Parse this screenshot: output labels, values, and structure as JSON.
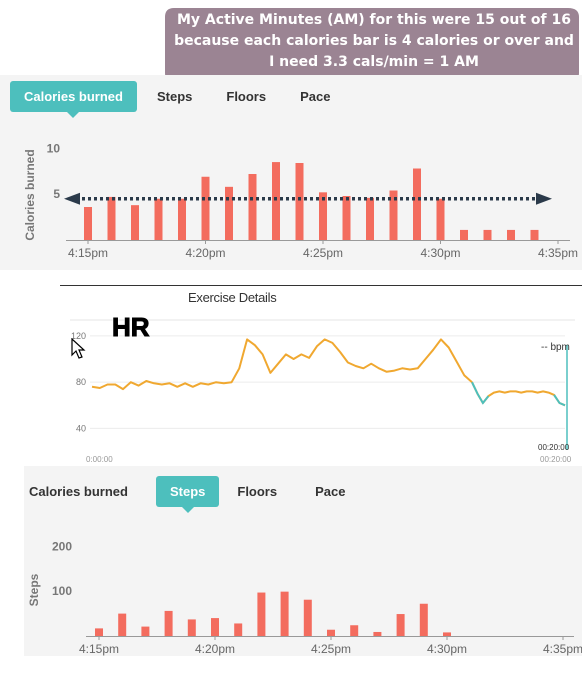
{
  "callout": {
    "lines": [
      "My Active Minutes (AM) for this were 15 out of 16",
      "because each calories bar is 4 calories or over and",
      "I need 3.3 cals/min = 1 AM"
    ],
    "color": "#9b8493"
  },
  "tabs_top": [
    {
      "label": "Calories burned",
      "active": true
    },
    {
      "label": "Steps",
      "active": false
    },
    {
      "label": "Floors",
      "active": false
    },
    {
      "label": "Pace",
      "active": false
    }
  ],
  "tabs_bottom": [
    {
      "label": "Calories burned",
      "active": false
    },
    {
      "label": "Steps",
      "active": true
    },
    {
      "label": "Floors",
      "active": false
    },
    {
      "label": "Pace",
      "active": false
    }
  ],
  "hr_panel": {
    "title": "Exercise Details",
    "label": "HR",
    "bpm_label": "-- bpm",
    "start_time": "0:00:00",
    "end_time_top": "00:20:00",
    "end_time_bottom": "00:20:00"
  },
  "colors": {
    "accent": "#4dbfbd",
    "bar": "#f36c5e",
    "hr_line": "#f0a830",
    "hr_cool": "#4dbfbd"
  },
  "chart_data": [
    {
      "type": "bar",
      "ylabel": "Calories burned",
      "yticks": [
        5,
        10
      ],
      "ylim": [
        0,
        12
      ],
      "xticks": [
        "4:15pm",
        "4:20pm",
        "4:25pm",
        "4:30pm",
        "4:35pm"
      ],
      "values": [
        3.6,
        4.7,
        3.8,
        4.5,
        4.5,
        6.9,
        5.8,
        7.2,
        8.5,
        8.4,
        5.2,
        4.8,
        4.6,
        5.4,
        7.8,
        4.5,
        1.1,
        1.1,
        1.1,
        1.1
      ],
      "annotation": "dotted double-headed arrow across bars at ~4.5 calories"
    },
    {
      "type": "line",
      "label": "HR",
      "yticks": [
        40,
        80,
        120
      ],
      "ylim": [
        30,
        145
      ],
      "series": [
        {
          "color": "#f0a830",
          "values": [
            76,
            75,
            78,
            78,
            74,
            80,
            77,
            81,
            79,
            78,
            79,
            76,
            79,
            76,
            79,
            78,
            80,
            79,
            80,
            92,
            117,
            112,
            104,
            88,
            96,
            104,
            100,
            104,
            101,
            111,
            117,
            114,
            106,
            97,
            94,
            92,
            96,
            92,
            89,
            90,
            92,
            91,
            92,
            100,
            108,
            117,
            110,
            98,
            86,
            80
          ]
        },
        {
          "color": "#4dbfbd",
          "values": [
            80,
            70,
            62,
            68,
            71,
            72,
            71,
            72,
            72,
            71,
            72,
            72,
            71,
            72,
            71,
            69,
            62,
            60
          ]
        }
      ]
    },
    {
      "type": "bar",
      "ylabel": "Steps",
      "yticks": [
        100,
        200
      ],
      "ylim": [
        0,
        250
      ],
      "xticks": [
        "4:15pm",
        "4:20pm",
        "4:25pm",
        "4:30pm",
        "4:35pm"
      ],
      "values": [
        17,
        50,
        21,
        56,
        37,
        40,
        28,
        97,
        99,
        81,
        14,
        24,
        9,
        49,
        72,
        8,
        0,
        0,
        0,
        0
      ]
    }
  ]
}
